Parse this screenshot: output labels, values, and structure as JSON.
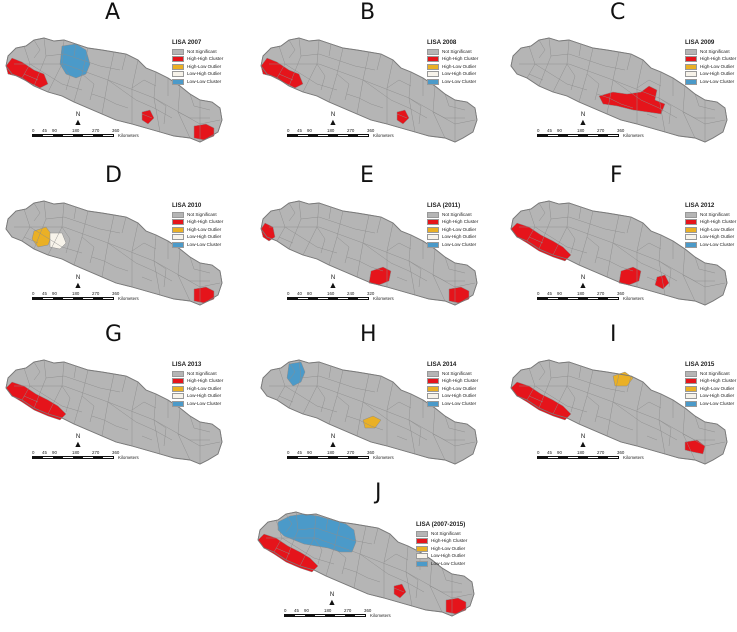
{
  "legend_items": [
    "Not Significant",
    "High-High Cluster",
    "High-Low Outlier",
    "Low-High Outlier",
    "Low-Low Cluster"
  ],
  "colors": {
    "base": "#b5b5b5",
    "stroke": "#8c8c8c",
    "hh": "#e5141b",
    "hl": "#eab025",
    "lh": "#f7f3ea",
    "ll": "#4b9ac9"
  },
  "north_label": "N",
  "km_label": "Kilometers",
  "panels": [
    {
      "id": "A",
      "letter": "A",
      "legend_title": "LISA 2007",
      "ticks": [
        "0",
        "45",
        "90",
        "180",
        "270",
        "360"
      ],
      "regions": [
        {
          "cat": "ll",
          "shape": "llNW"
        },
        {
          "cat": "hh",
          "shape": "hhWest"
        },
        {
          "cat": "hh",
          "shape": "hhMid"
        },
        {
          "cat": "hh",
          "shape": "hhEast"
        }
      ]
    },
    {
      "id": "B",
      "letter": "B",
      "legend_title": "LISA 2008",
      "ticks": [
        "0",
        "45",
        "90",
        "180",
        "270",
        "360"
      ],
      "regions": [
        {
          "cat": "hh",
          "shape": "hhWest"
        },
        {
          "cat": "hh",
          "shape": "hhMid"
        }
      ]
    },
    {
      "id": "C",
      "letter": "C",
      "legend_title": "LISA 2009",
      "ticks": [
        "0",
        "45",
        "90",
        "180",
        "270",
        "360"
      ],
      "regions": [
        {
          "cat": "hh",
          "shape": "hhCentral"
        }
      ]
    },
    {
      "id": "D",
      "letter": "D",
      "legend_title": "LISA 2010",
      "ticks": [
        "0",
        "45",
        "90",
        "180",
        "270",
        "360"
      ],
      "regions": [
        {
          "cat": "hl",
          "shape": "hlWest"
        },
        {
          "cat": "lh",
          "shape": "lhWest"
        },
        {
          "cat": "hh",
          "shape": "hhEast"
        }
      ]
    },
    {
      "id": "E",
      "letter": "E",
      "legend_title": "LISA (2011)",
      "ticks": [
        "0",
        "40",
        "80",
        "160",
        "240",
        "320"
      ],
      "regions": [
        {
          "cat": "hh",
          "shape": "hhWestTip"
        },
        {
          "cat": "hh",
          "shape": "hhMid2"
        },
        {
          "cat": "hh",
          "shape": "hhEast"
        }
      ]
    },
    {
      "id": "F",
      "letter": "F",
      "legend_title": "LISA 2012",
      "ticks": [
        "0",
        "45",
        "90",
        "180",
        "270",
        "360"
      ],
      "regions": [
        {
          "cat": "hh",
          "shape": "hhWestLong"
        },
        {
          "cat": "hh",
          "shape": "hhMid2"
        },
        {
          "cat": "hh",
          "shape": "hhMid3"
        }
      ]
    },
    {
      "id": "G",
      "letter": "G",
      "legend_title": "LISA 2013",
      "ticks": [
        "0",
        "45",
        "90",
        "180",
        "270",
        "360"
      ],
      "regions": [
        {
          "cat": "hh",
          "shape": "hhWestLong"
        }
      ]
    },
    {
      "id": "H",
      "letter": "H",
      "legend_title": "LISA 2014",
      "ticks": [
        "0",
        "45",
        "90",
        "180",
        "270",
        "360"
      ],
      "regions": [
        {
          "cat": "ll",
          "shape": "llFarNW"
        },
        {
          "cat": "hl",
          "shape": "hlMid"
        }
      ]
    },
    {
      "id": "I",
      "letter": "I",
      "legend_title": "LISA 2015",
      "ticks": [
        "0",
        "45",
        "90",
        "180",
        "270",
        "360"
      ],
      "regions": [
        {
          "cat": "hl",
          "shape": "hlNorth"
        },
        {
          "cat": "hh",
          "shape": "hhWestLong"
        },
        {
          "cat": "hh",
          "shape": "hhEast2"
        }
      ]
    },
    {
      "id": "J",
      "letter": "J",
      "legend_title": "LISA (2007-2015)",
      "ticks": [
        "0",
        "45",
        "90",
        "180",
        "270",
        "360"
      ],
      "regions": [
        {
          "cat": "ll",
          "shape": "llBigNW"
        },
        {
          "cat": "hh",
          "shape": "hhWestLong"
        },
        {
          "cat": "hh",
          "shape": "hhMid"
        },
        {
          "cat": "hh",
          "shape": "hhEast"
        }
      ]
    }
  ]
}
